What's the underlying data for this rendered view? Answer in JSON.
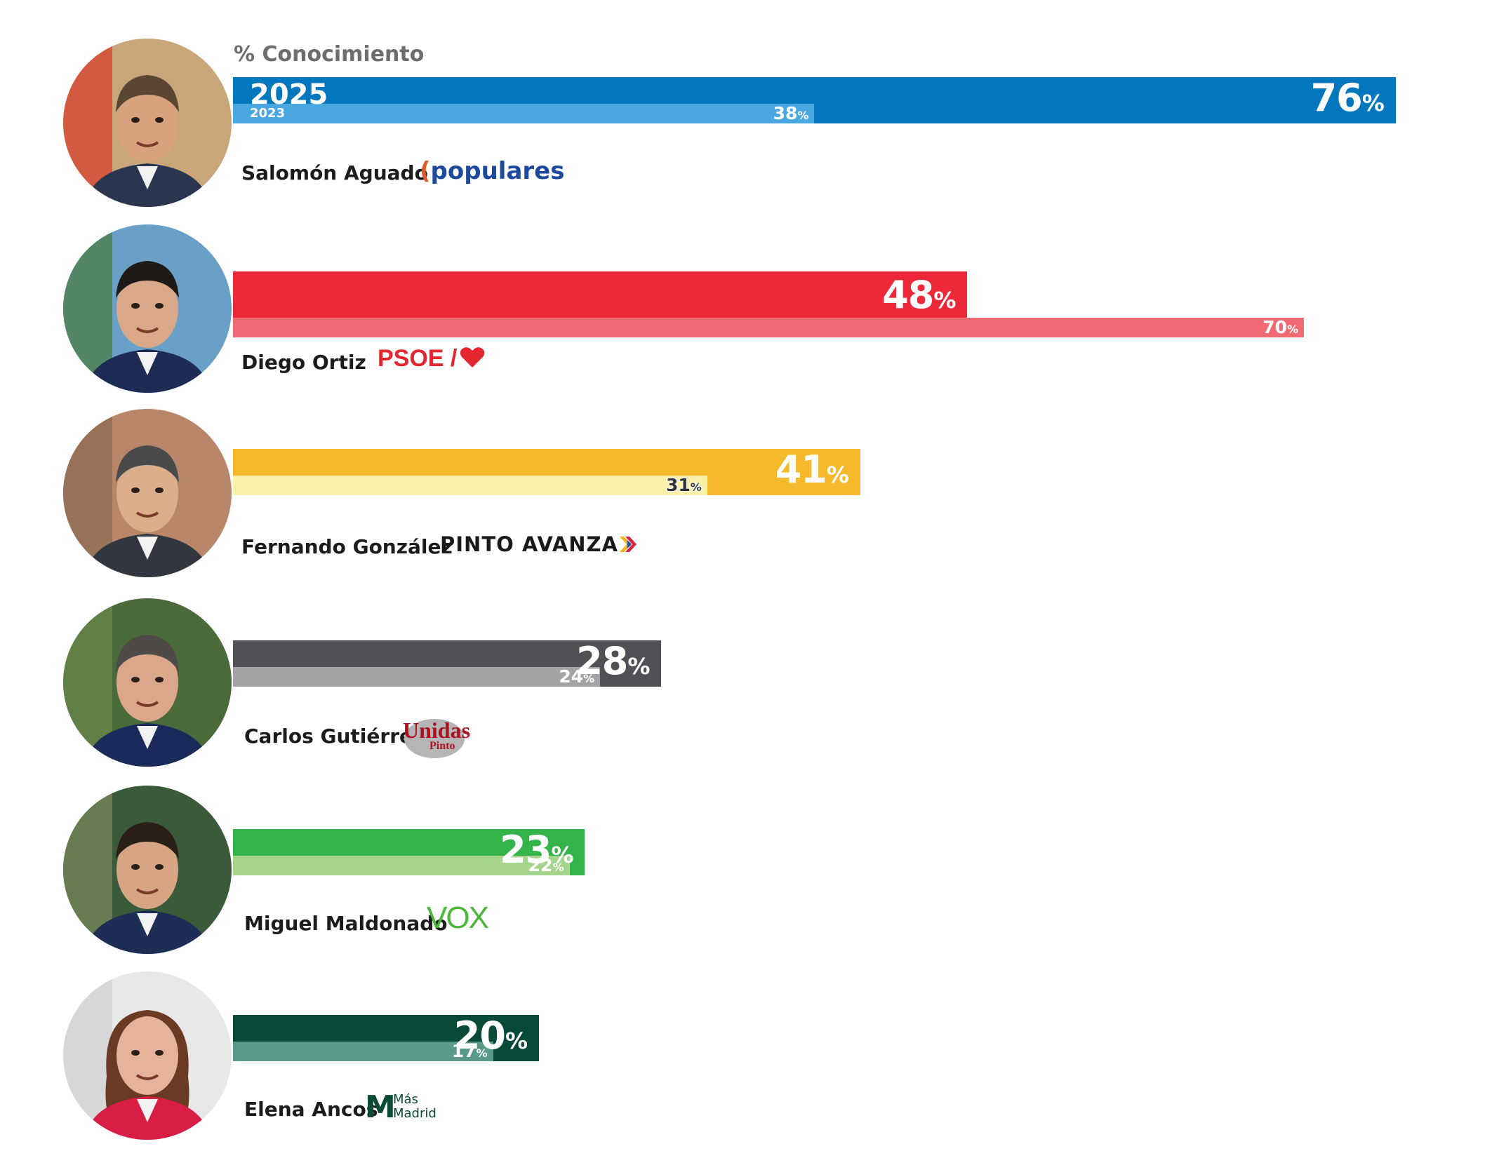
{
  "chart_data": {
    "type": "bar",
    "title": "% Conocimiento",
    "series_labels": {
      "current": "2025",
      "previous": "2023"
    },
    "xlim": [
      0,
      100
    ],
    "candidates": [
      {
        "name": "Salomón Aguado",
        "party": "populares",
        "value_2025": 76,
        "value_2023": 38,
        "color_2025": "#0277bd",
        "color_2023": "#4aa8e0"
      },
      {
        "name": "Diego Ortiz",
        "party": "PSOE /",
        "value_2025": 48,
        "value_2023": 70,
        "color_2025": "#ed2939",
        "color_2023": "#f06a73"
      },
      {
        "name": "Fernando González",
        "party": "PINTO AVANZA",
        "value_2025": 41,
        "value_2023": 31,
        "color_2025": "#f6b92b",
        "color_2023": "#faf1a8"
      },
      {
        "name": "Carlos Gutiérrez",
        "party": "Unidas Pinto",
        "value_2025": 28,
        "value_2023": 24,
        "color_2025": "#505055",
        "color_2023": "#a3a3a5"
      },
      {
        "name": "Miguel Maldonado",
        "party": "VOX",
        "value_2025": 23,
        "value_2023": 22,
        "color_2025": "#34b34a",
        "color_2023": "#a5d48c"
      },
      {
        "name": "Elena Ancos",
        "party": "Más Madrid",
        "value_2025": 20,
        "value_2023": 17,
        "color_2025": "#084a38",
        "color_2023": "#5a9a8a"
      }
    ]
  },
  "pct_sign": "%",
  "logos": {
    "psoe_text": "PSOE /",
    "unidas_top": "Unidas",
    "unidas_bottom": "Pinto",
    "mas_top": "Más",
    "mas_bottom": "Madrid",
    "mas_letter": "M"
  },
  "icons": {
    "pp": "pp-logo-icon",
    "psoe": "heart-icon",
    "pinto": "chevron-arrows-icon",
    "unidas": "unidas-pinto-logo",
    "vox": "vox-logo",
    "mas": "mas-madrid-logo"
  }
}
